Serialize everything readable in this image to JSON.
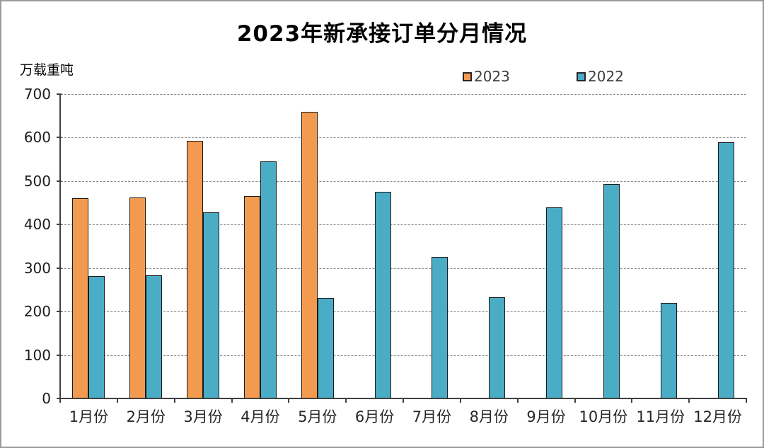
{
  "title": "2023年新承接订单分月情况",
  "y_unit_label": "万载重吨",
  "legend": {
    "items": [
      {
        "label": "2023",
        "color": "#F29B50"
      },
      {
        "label": "2022",
        "color": "#4BACC6"
      }
    ]
  },
  "chart_data": {
    "type": "bar",
    "title": "2023年新承接订单分月情况",
    "xlabel": "",
    "ylabel": "万载重吨",
    "categories": [
      "1月份",
      "2月份",
      "3月份",
      "4月份",
      "5月份",
      "6月份",
      "7月份",
      "8月份",
      "9月份",
      "10月份",
      "11月份",
      "12月份"
    ],
    "series": [
      {
        "name": "2023",
        "color": "#F29B50",
        "values": [
          460,
          462,
          593,
          466,
          659,
          null,
          null,
          null,
          null,
          null,
          null,
          null
        ]
      },
      {
        "name": "2022",
        "color": "#4BACC6",
        "values": [
          282,
          283,
          428,
          546,
          231,
          476,
          326,
          232,
          440,
          493,
          220,
          590
        ]
      }
    ],
    "ylim": [
      0,
      700
    ],
    "ytick_step": 100,
    "grid": "horizontal-dashed",
    "legend_position": "top"
  }
}
